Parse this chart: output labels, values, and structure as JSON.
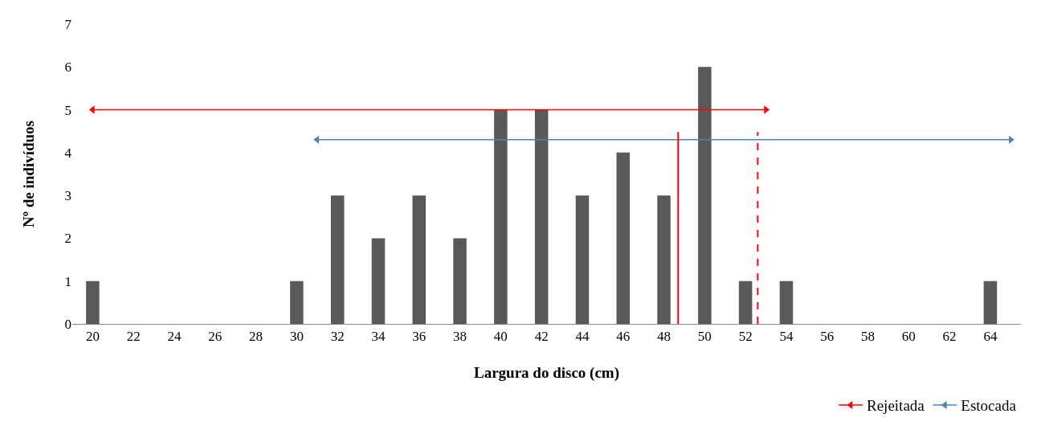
{
  "chart_data": {
    "type": "bar",
    "xlabel": "Largura do disco (cm)",
    "ylabel": "Nº de indivíduos",
    "x": [
      20,
      22,
      24,
      26,
      28,
      30,
      32,
      34,
      36,
      38,
      40,
      42,
      44,
      46,
      48,
      50,
      52,
      54,
      56,
      58,
      60,
      62,
      64
    ],
    "values": [
      1,
      0,
      0,
      0,
      0,
      1,
      3,
      2,
      3,
      2,
      5,
      5,
      3,
      4,
      3,
      6,
      1,
      1,
      0,
      0,
      0,
      0,
      1
    ],
    "color": "#595959",
    "series": [
      {
        "type": "line",
        "name": "Rejeitada",
        "color": "#ff0000",
        "x": [
          20,
          53
        ],
        "values": [
          5,
          5
        ]
      },
      {
        "type": "line",
        "name": "Estocada",
        "color": "#4f81bd",
        "x": [
          31,
          65
        ],
        "values": [
          4.3,
          4.3
        ]
      }
    ],
    "marker": "triangle",
    "ref_lines": [
      {
        "axis": "x",
        "value": 48.7,
        "color": "#ff0000",
        "line_style": "solid"
      },
      {
        "axis": "x",
        "value": 52.6,
        "color": "#ff0000",
        "line_style": "dashed"
      }
    ],
    "xlim": [
      19,
      65.5
    ],
    "xticks": [
      20,
      22,
      24,
      26,
      28,
      30,
      32,
      34,
      36,
      38,
      40,
      42,
      44,
      46,
      48,
      50,
      52,
      54,
      56,
      58,
      60,
      62,
      64
    ],
    "ylim": [
      0,
      7
    ],
    "yticks": [
      0,
      1,
      2,
      3,
      4,
      5,
      6,
      7
    ],
    "grid": false,
    "legend": "bottom right"
  }
}
